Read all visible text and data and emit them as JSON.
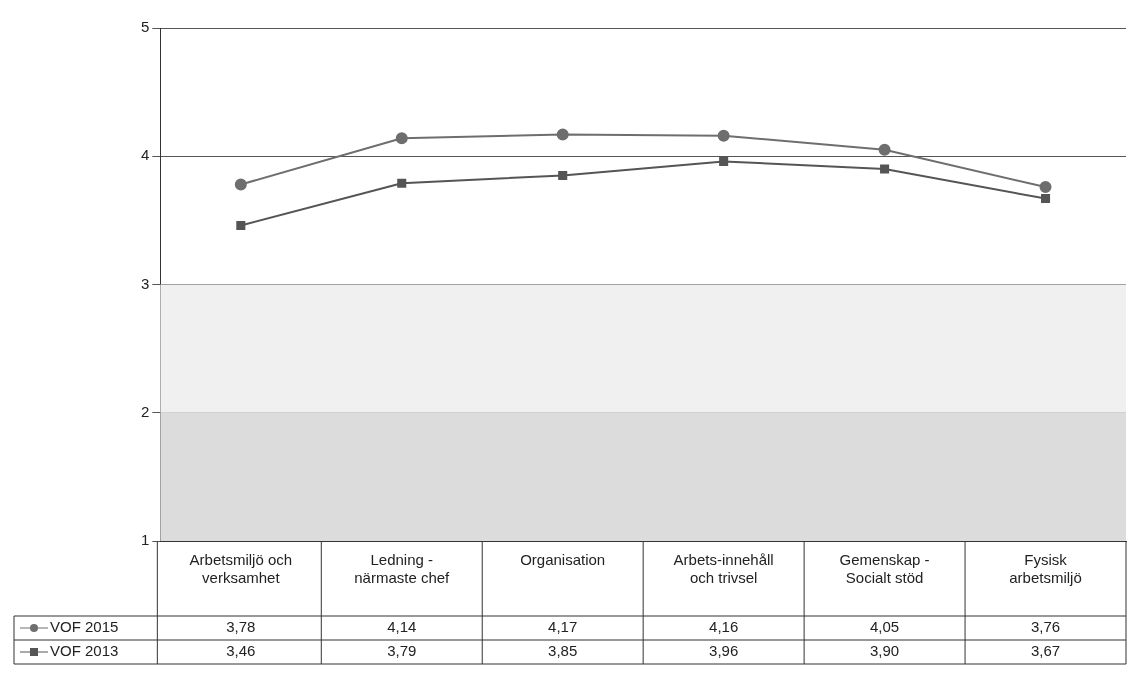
{
  "chart_data": {
    "type": "line",
    "categories": [
      "Arbetsmiljö och verksamhet",
      "Ledning - närmaste chef",
      "Organisation",
      "Arbets-innehåll och trivsel",
      "Gemenskap - Socialt stöd",
      "Fysisk arbetsmiljö"
    ],
    "series": [
      {
        "name": "VOF 2015",
        "color": "#6e6e6e",
        "marker": "circle",
        "values": [
          3.78,
          4.14,
          4.17,
          4.16,
          4.05,
          3.76
        ],
        "value_labels": [
          "3,78",
          "4,14",
          "4,17",
          "4,16",
          "4,05",
          "3,76"
        ]
      },
      {
        "name": "VOF 2013",
        "color": "#555555",
        "marker": "square",
        "values": [
          3.46,
          3.79,
          3.85,
          3.96,
          3.9,
          3.67
        ],
        "value_labels": [
          "3,46",
          "3,79",
          "3,85",
          "3,96",
          "3,90",
          "3,67"
        ]
      }
    ],
    "ylim": [
      1,
      5
    ],
    "yticks": [
      1,
      2,
      3,
      4,
      5
    ],
    "grid": "y",
    "legend": "bottom left",
    "bands": [
      {
        "axis": "y",
        "from": 1,
        "to": 2,
        "color": "#dcdcdc"
      },
      {
        "axis": "y",
        "from": 2,
        "to": 3,
        "color": "#f0f0f0"
      }
    ]
  }
}
